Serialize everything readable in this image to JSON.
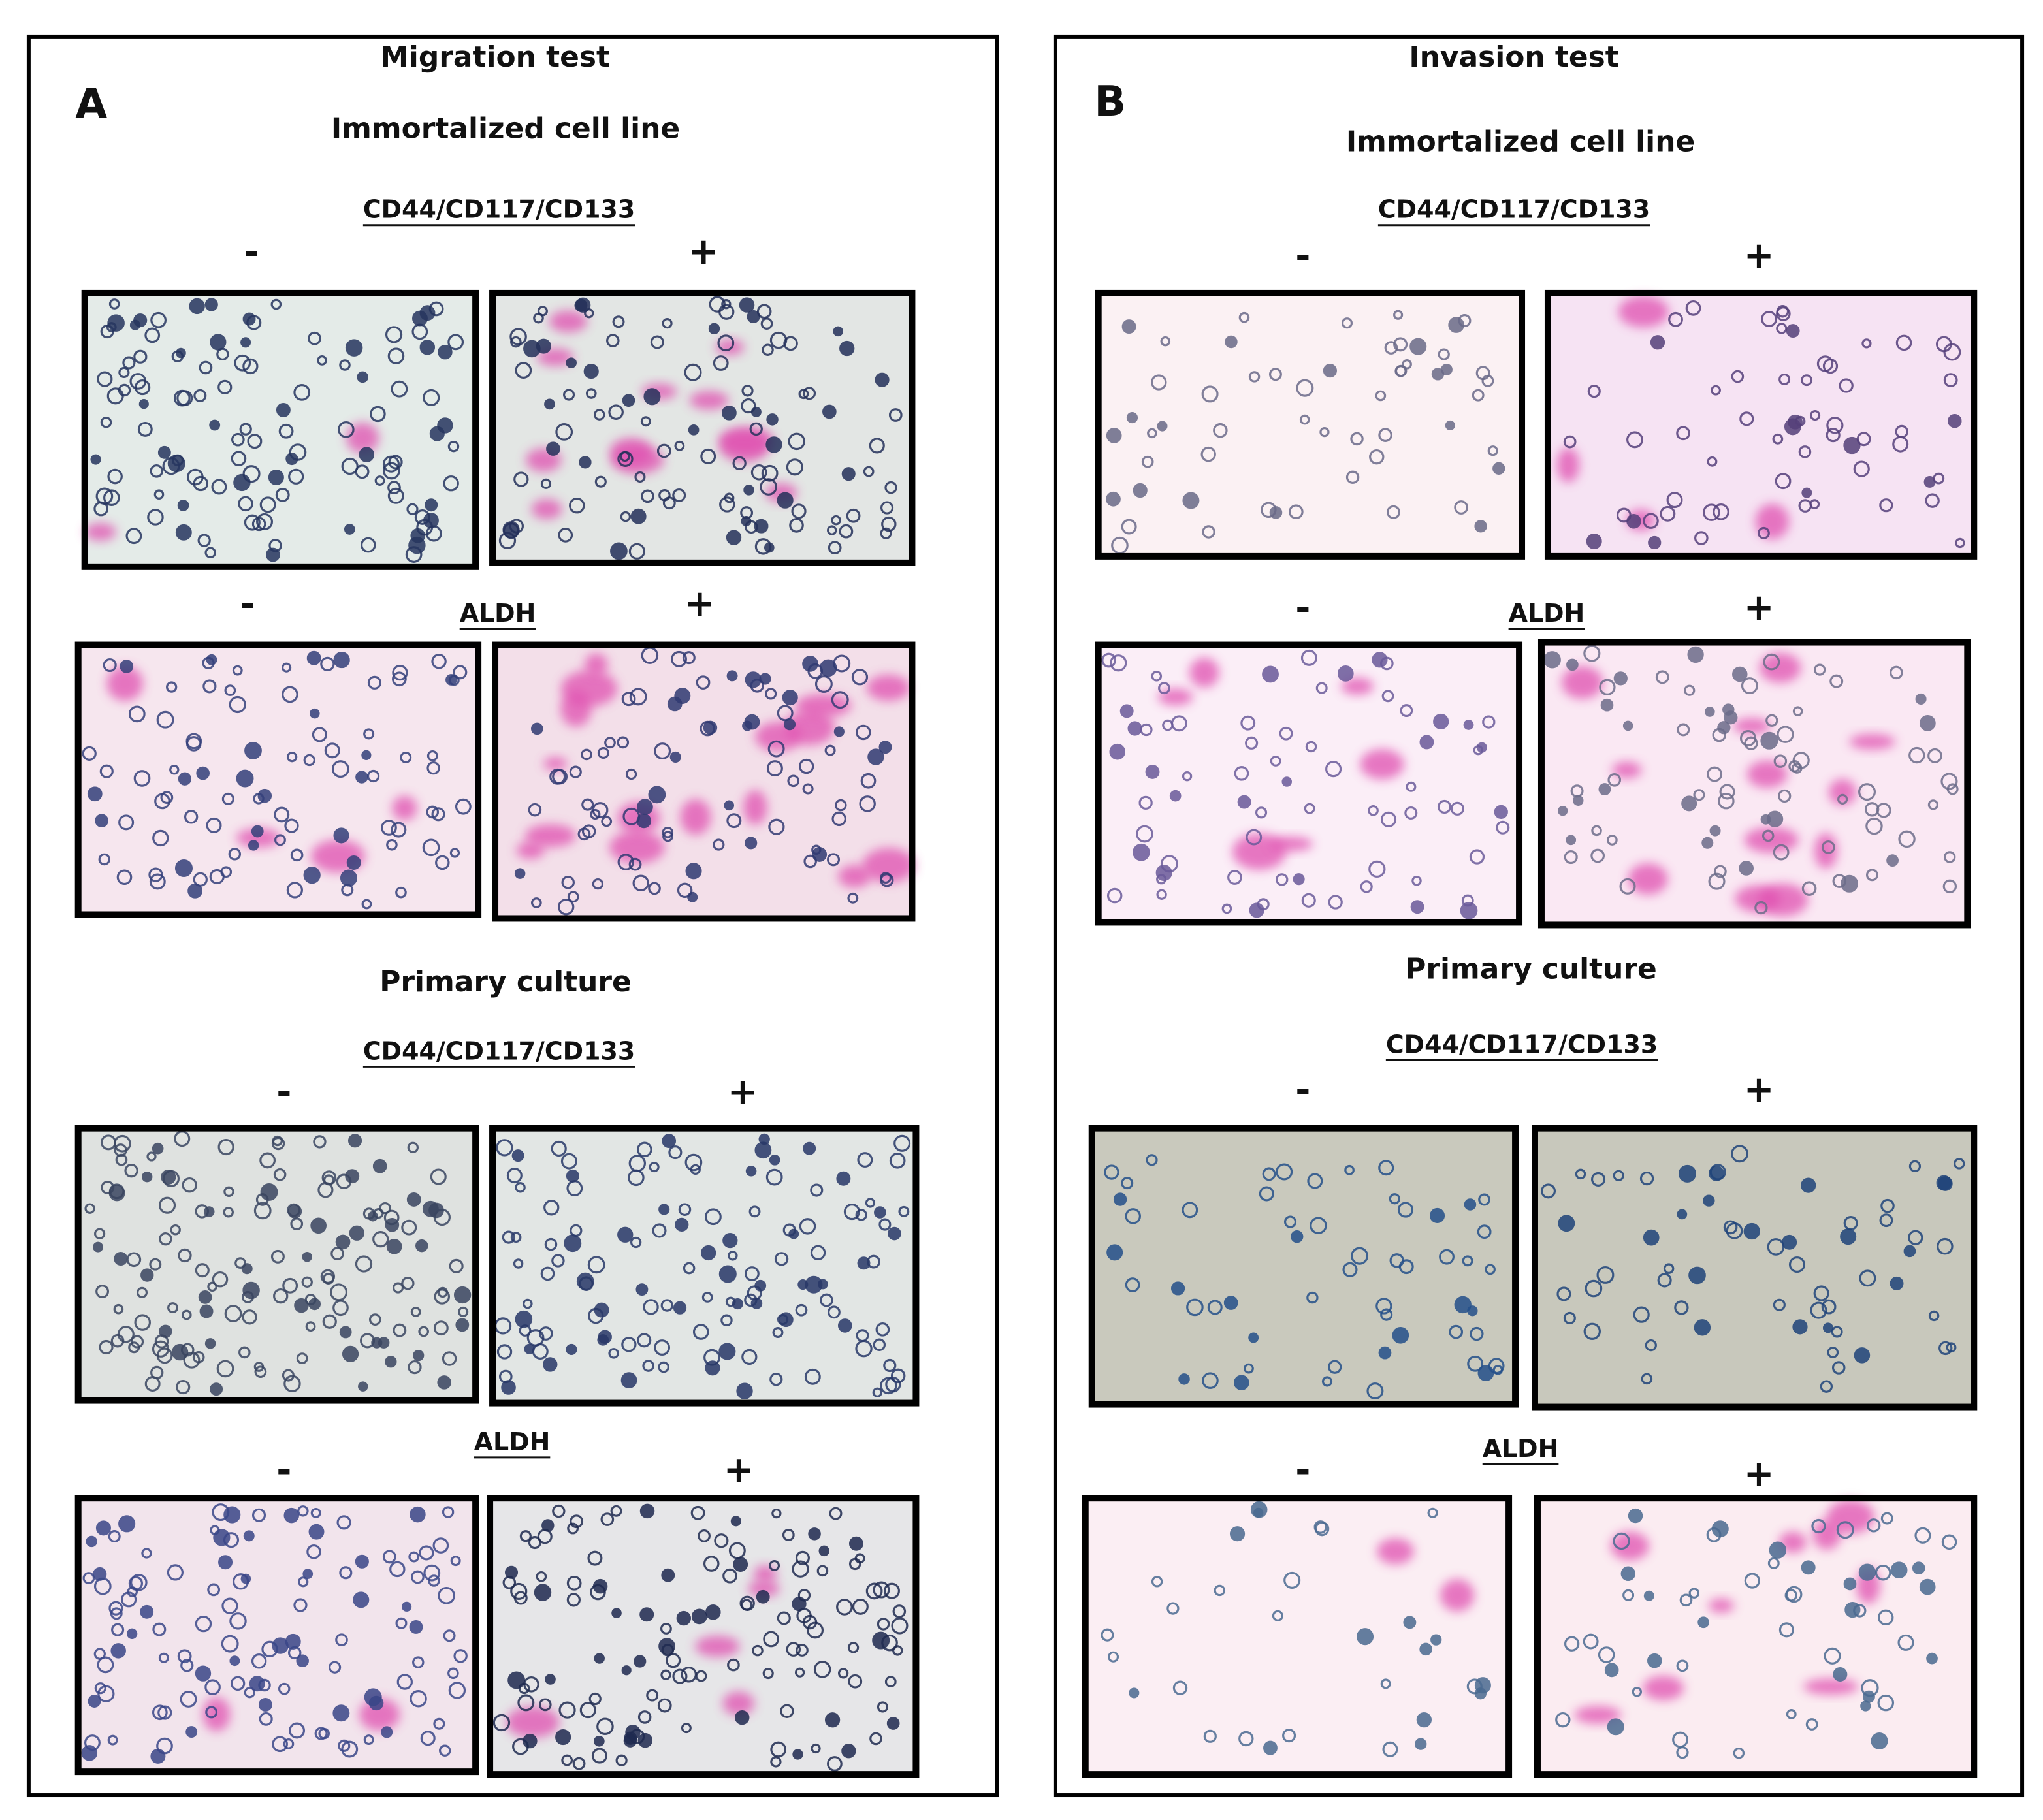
{
  "panels": [
    {
      "title": "Migration test",
      "letter": "A",
      "sections": [
        {
          "heading": "Immortalized cell line",
          "groups": [
            {
              "marker": "CD44/CD117/CD133",
              "negative": "-",
              "positive": "+"
            },
            {
              "marker": "ALDH",
              "negative": "-",
              "positive": "+"
            }
          ]
        },
        {
          "heading": "Primary culture",
          "groups": [
            {
              "marker": "CD44/CD117/CD133",
              "negative": "-",
              "positive": "+"
            },
            {
              "marker": "ALDH",
              "negative": "-",
              "positive": "+"
            }
          ]
        }
      ]
    },
    {
      "title": "Invasion test",
      "letter": "B",
      "sections": [
        {
          "heading": "Immortalized cell line",
          "groups": [
            {
              "marker": "CD44/CD117/CD133",
              "negative": "-",
              "positive": "+"
            },
            {
              "marker": "ALDH",
              "negative": "-",
              "positive": "+"
            }
          ]
        },
        {
          "heading": "Primary culture",
          "groups": [
            {
              "marker": "CD44/CD117/CD133",
              "negative": "-",
              "positive": "+"
            },
            {
              "marker": "ALDH",
              "negative": "-",
              "positive": "+"
            }
          ]
        }
      ]
    }
  ]
}
